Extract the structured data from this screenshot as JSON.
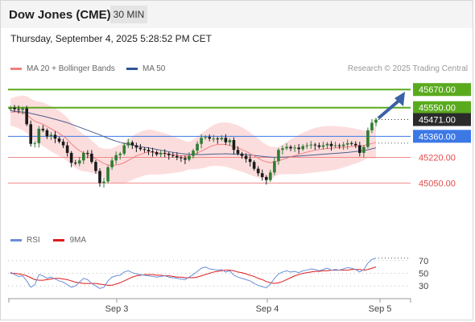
{
  "header": {
    "title": "Dow Jones (CME)",
    "timeframe": "30 MIN",
    "datetime": "Thursday, September 4, 2025 5:28:52 PM CET"
  },
  "legend": {
    "ma20_label": "MA 20 + Bollinger Bands",
    "ma50_label": "MA 50",
    "copyright": "Research © 2025 Trading Central"
  },
  "colors": {
    "ma20": "#f08080",
    "ma50": "#4a5f8f",
    "band_fill": "#fbd7d7",
    "resistance": "#5aaa1e",
    "pivot": "#3c78e6",
    "support": "#f08a8a",
    "candle_up": "#2e7d32",
    "candle_down": "#1b1b1b",
    "arrow": "#3a62a8",
    "last_price_tag": "#2b2b2b",
    "rsi": "#6a8fd8",
    "rsi_ma": "#e01b1b"
  },
  "chart_data": [
    {
      "type": "candlestick",
      "ylim": [
        44780,
        45730
      ],
      "x_tick_labels": [
        "Sep 3",
        "Sep 4",
        "Sep 5"
      ],
      "levels": [
        {
          "label": "45670.00",
          "value": 45670,
          "kind": "resistance"
        },
        {
          "label": "45550.00",
          "value": 45550,
          "kind": "resistance"
        },
        {
          "label": "45471.00",
          "value": 45471,
          "kind": "last_price"
        },
        {
          "label": "45360.00",
          "value": 45360,
          "kind": "pivot"
        },
        {
          "label": "45220.00",
          "value": 45220,
          "kind": "support"
        },
        {
          "label": "45050.00",
          "value": 45050,
          "kind": "support"
        }
      ],
      "series": [
        {
          "name": "Price",
          "closes": [
            45550,
            45540,
            45535,
            45545,
            45440,
            45310,
            45315,
            45410,
            45400,
            45360,
            45370,
            45345,
            45325,
            45300,
            45250,
            45185,
            45180,
            45200,
            45250,
            45245,
            45190,
            45130,
            45050,
            45060,
            45155,
            45200,
            45235,
            45245,
            45300,
            45320,
            45300,
            45285,
            45275,
            45270,
            45260,
            45255,
            45240,
            45250,
            45245,
            45235,
            45230,
            45220,
            45215,
            45205,
            45230,
            45265,
            45310,
            45350,
            45355,
            45345,
            45345,
            45340,
            45350,
            45320,
            45335,
            45270,
            45245,
            45230,
            45210,
            45190,
            45145,
            45115,
            45090,
            45070,
            45120,
            45195,
            45270,
            45280,
            45290,
            45280,
            45285,
            45275,
            45295,
            45300,
            45305,
            45300,
            45290,
            45300,
            45310,
            45295,
            45300,
            45295,
            45305,
            45315,
            45310,
            45300,
            45250,
            45290,
            45400,
            45450,
            45471
          ]
        },
        {
          "name": "MA 20",
          "values": [
            45520,
            45522,
            45520,
            45515,
            45505,
            45480,
            45460,
            45450,
            45440,
            45425,
            45410,
            45395,
            45380,
            45360,
            45340,
            45310,
            45285,
            45265,
            45250,
            45240,
            45225,
            45210,
            45195,
            45180,
            45170,
            45165,
            45170,
            45175,
            45185,
            45200,
            45215,
            45230,
            45240,
            45250,
            45255,
            45255,
            45250,
            45248,
            45245,
            45242,
            45240,
            45235,
            45232,
            45230,
            45232,
            45240,
            45250,
            45262,
            45275,
            45290,
            45300,
            45305,
            45307,
            45305,
            45300,
            45292,
            45283,
            45272,
            45260,
            45245,
            45230,
            45215,
            45200,
            45190,
            45185,
            45190,
            45198,
            45207,
            45215,
            45225,
            45232,
            45240,
            45248,
            45255,
            45262,
            45268,
            45272,
            45276,
            45279,
            45281,
            45283,
            45285,
            45288,
            45290,
            45293,
            45295,
            45297,
            45300,
            45305,
            45312,
            45320
          ]
        },
        {
          "name": "MA 50",
          "values": [
            45530,
            45527,
            45524,
            45521,
            45518,
            45512,
            45506,
            45500,
            45494,
            45487,
            45480,
            45473,
            45466,
            45458,
            45450,
            45440,
            45430,
            45420,
            45410,
            45400,
            45390,
            45380,
            45370,
            45358,
            45347,
            45337,
            45328,
            45320,
            45313,
            45307,
            45302,
            45297,
            45292,
            45287,
            45283,
            45278,
            45273,
            45268,
            45263,
            45258,
            45254,
            45250,
            45246,
            45243,
            45241,
            45240,
            45239,
            45239,
            45240,
            45241,
            45242,
            45243,
            45243,
            45244,
            45243,
            45242,
            45241,
            45240,
            45238,
            45236,
            45233,
            45230,
            45227,
            45224,
            45222,
            45221,
            45221,
            45222,
            45223,
            45225,
            45227,
            45229,
            45231,
            45233,
            45235,
            45237,
            45239,
            45241,
            45243,
            45245,
            45247,
            45249,
            45251,
            45253,
            45256,
            45259,
            45262,
            45266,
            45271,
            45277,
            45284
          ]
        }
      ]
    },
    {
      "type": "line",
      "ylim": [
        15,
        85
      ],
      "y_ticks": [
        70,
        50,
        30
      ],
      "x_tick_labels": [
        "Sep 3",
        "Sep 4",
        "Sep 5"
      ],
      "series": [
        {
          "name": "RSI",
          "values": [
            52,
            48,
            45,
            46,
            38,
            28,
            32,
            48,
            46,
            42,
            44,
            41,
            38,
            36,
            32,
            28,
            30,
            36,
            42,
            40,
            34,
            30,
            26,
            28,
            38,
            44,
            46,
            47,
            52,
            54,
            51,
            49,
            48,
            47,
            46,
            45,
            44,
            45,
            46,
            44,
            43,
            42,
            41,
            40,
            44,
            48,
            53,
            58,
            60,
            57,
            56,
            55,
            56,
            52,
            54,
            47,
            44,
            42,
            40,
            38,
            34,
            31,
            29,
            27,
            33,
            42,
            49,
            52,
            54,
            52,
            53,
            51,
            54,
            55,
            57,
            56,
            54,
            56,
            58,
            55,
            56,
            55,
            57,
            59,
            58,
            56,
            52,
            56,
            66,
            72,
            74
          ]
        },
        {
          "name": "9MA",
          "values": [
            50,
            50,
            49,
            48,
            46,
            43,
            40,
            39,
            39,
            40,
            41,
            42,
            42,
            41,
            40,
            38,
            36,
            35,
            34,
            34,
            34,
            34,
            33,
            32,
            31,
            31,
            33,
            35,
            38,
            41,
            44,
            46,
            47,
            48,
            48,
            48,
            47,
            47,
            46,
            46,
            45,
            44,
            44,
            43,
            43,
            43,
            44,
            46,
            48,
            50,
            52,
            53,
            54,
            55,
            55,
            54,
            52,
            51,
            49,
            47,
            45,
            42,
            40,
            37,
            35,
            34,
            35,
            37,
            40,
            43,
            46,
            48,
            50,
            51,
            52,
            53,
            53,
            54,
            54,
            55,
            55,
            55,
            55,
            55,
            56,
            56,
            56,
            55,
            56,
            58,
            60
          ]
        }
      ]
    }
  ]
}
